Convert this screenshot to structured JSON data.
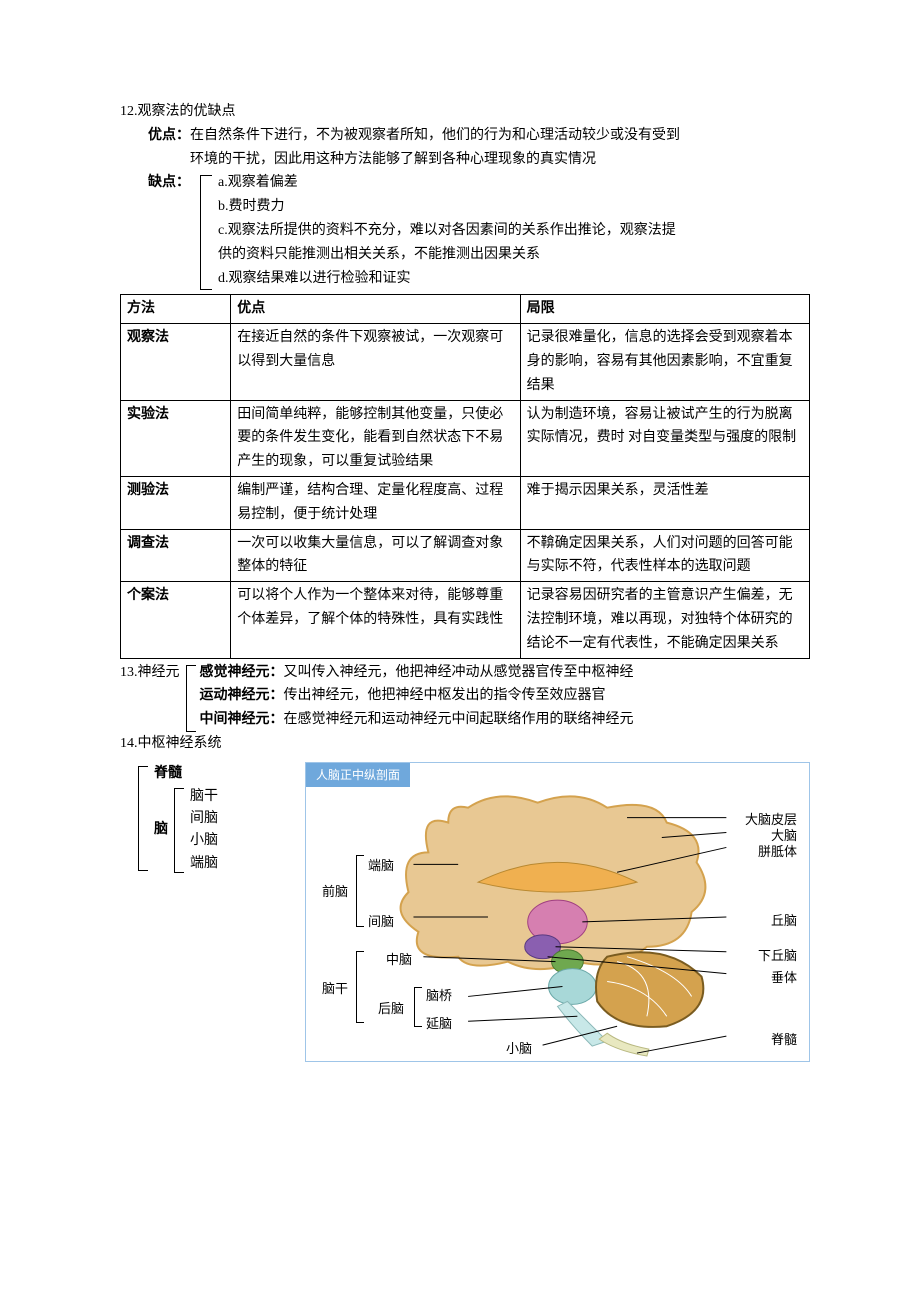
{
  "section12": {
    "title": "12.观察法的优缺点",
    "advantage_label": "优点：",
    "advantage_text_1": "在自然条件下进行，不为被观察者所知，他们的行为和心理活动较少或没有受到",
    "advantage_text_2": "环境的干扰，因此用这种方法能够了解到各种心理现象的真实情况",
    "disadvantage_label": "缺点：",
    "disadvantages": {
      "a": "a.观察着偏差",
      "b": "b.费时费力",
      "c1": "c.观察法所提供的资料不充分，难以对各因素间的关系作出推论，观察法提",
      "c2": "供的资料只能推测出相关关系，不能推测出因果关系",
      "d": "d.观察结果难以进行检验和证实"
    }
  },
  "methods_table": {
    "columns": [
      "方法",
      "优点",
      "局限"
    ],
    "col_widths": [
      "16%",
      "42%",
      "42%"
    ],
    "rows": [
      {
        "method": "观察法",
        "advantage": "在接近自然的条件下观察被试，一次观察可以得到大量信息",
        "limitation": "记录很难量化，信息的选择会受到观察着本身的影响，容易有其他因素影响，不宜重复结果"
      },
      {
        "method": "实验法",
        "advantage": "田间简单纯粹，能够控制其他变量，只使必要的条件发生变化，能看到自然状态下不易产生的现象，可以重复试验结果",
        "limitation": "认为制造环境，容易让被试产生的行为脱离实际情况，费时 对自变量类型与强度的限制"
      },
      {
        "method": "测验法",
        "advantage": "编制严谨，结构合理、定量化程度高、过程易控制，便于统计处理",
        "limitation": "难于揭示因果关系，灵活性差"
      },
      {
        "method": "调查法",
        "advantage": "一次可以收集大量信息，可以了解调查对象整体的特征",
        "limitation": "不鞥确定因果关系，人们对问题的回答可能与实际不符，代表性样本的选取问题"
      },
      {
        "method": "个案法",
        "advantage": "可以将个人作为一个整体来对待，能够尊重个体差异，了解个体的特殊性，具有实践性",
        "limitation": "记录容易因研究者的主管意识产生偏差，无法控制环境，难以再现，对独特个体研究的结论不一定有代表性，不能确定因果关系"
      }
    ]
  },
  "section13": {
    "lead": "13.神经元",
    "neurons": [
      {
        "type": "感觉神经元：",
        "desc": "又叫传入神经元，他把神经冲动从感觉器官传至中枢神经"
      },
      {
        "type": "运动神经元：",
        "desc": "传出神经元，他把神经中枢发出的指令传至效应器官"
      },
      {
        "type": "中间神经元：",
        "desc": "在感觉神经元和运动神经元中间起联络作用的联络神经元"
      }
    ]
  },
  "section14": {
    "title": "14.中枢神经系统",
    "spinal": "脊髓",
    "brain_label": "脑",
    "brain_parts": [
      "脑干",
      "间脑",
      "小脑",
      "端脑"
    ]
  },
  "brain_figure": {
    "title": "人脑正中纵剖面",
    "title_bg": "#6fa8dc",
    "title_color": "#ffffff",
    "border_color": "#9fc5e8",
    "background": "#ffffff",
    "left_labels": {
      "telencephalon": "端脑",
      "forebrain": "前脑",
      "diencephalon": "间脑",
      "midbrain": "中脑",
      "brainstem": "脑干",
      "hindbrain": "后脑",
      "pons": "脑桥",
      "medulla": "延脑",
      "cerebellum_small": "小脑"
    },
    "right_labels": {
      "cortex": "大脑皮层",
      "cerebrum": "大脑",
      "corpus_callosum": "胼胝体",
      "thalamus": "丘脑",
      "hypothalamus": "下丘脑",
      "pituitary": "垂体",
      "spinal": "脊髓"
    },
    "colors": {
      "cerebrum_outer": "#d4a24e",
      "cerebrum_inner": "#e8c893",
      "corpus_callosum": "#f0b050",
      "thalamus": "#d67fb0",
      "hypothalamus": "#8a5fb0",
      "midbrain": "#6fa84f",
      "pons": "#a8d8d8",
      "medulla": "#c8e8e8",
      "cerebellum": "#d4a24e",
      "cerebellum_inner": "#ffffff",
      "spinal": "#e8e8c0"
    }
  }
}
